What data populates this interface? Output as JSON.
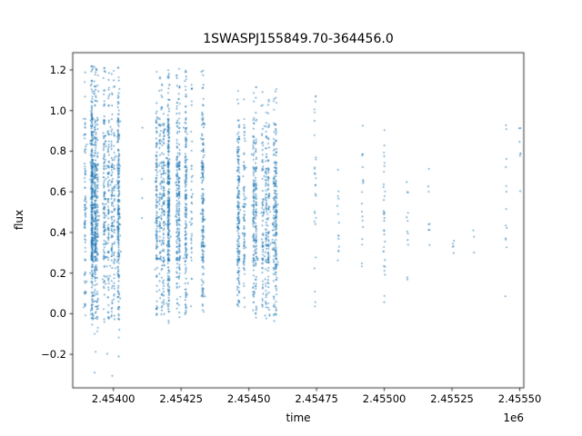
{
  "chart_data": {
    "type": "scatter",
    "title": "1SWASPJ155849.70-364456.0",
    "xlabel": "time",
    "ylabel": "flux",
    "x_offset_label": "1e6",
    "legend": "none",
    "grid": false,
    "marker_color": "#1f77b4",
    "marker_size_px": 1.7,
    "xlim": [
      2453850,
      2455515
    ],
    "ylim": [
      -0.365,
      1.285
    ],
    "x_ticks": [
      {
        "value": 2454000,
        "label": "2.45400"
      },
      {
        "value": 2454250,
        "label": "2.45425"
      },
      {
        "value": 2454500,
        "label": "2.45450"
      },
      {
        "value": 2454750,
        "label": "2.45475"
      },
      {
        "value": 2455000,
        "label": "2.45500"
      },
      {
        "value": 2455250,
        "label": "2.45525"
      },
      {
        "value": 2455500,
        "label": "2.45550"
      }
    ],
    "y_ticks": [
      {
        "value": -0.2,
        "label": "−0.2"
      },
      {
        "value": 0.0,
        "label": "0.0"
      },
      {
        "value": 0.2,
        "label": "0.2"
      },
      {
        "value": 0.4,
        "label": "0.4"
      },
      {
        "value": 0.6,
        "label": "0.6"
      },
      {
        "value": 0.8,
        "label": "0.8"
      },
      {
        "value": 1.0,
        "label": "1.0"
      },
      {
        "value": 1.2,
        "label": "1.2"
      }
    ],
    "seed": 42,
    "dense_clusters": [
      {
        "x_min": 2453895,
        "x_max": 2454040,
        "strips": 18,
        "points": 1400,
        "y_layers": [
          {
            "frac": 0.012,
            "min": -0.33,
            "max": 0.02
          },
          {
            "frac": 0.075,
            "min": 0.95,
            "max": 1.22
          },
          {
            "frac": 0.17,
            "min": 0.72,
            "max": 0.96
          },
          {
            "frac": 0.16,
            "min": -0.03,
            "max": 0.28
          },
          {
            "frac": 0.583,
            "min": 0.26,
            "max": 0.74
          }
        ]
      },
      {
        "x_min": 2454150,
        "x_max": 2454355,
        "strips": 16,
        "points": 1250,
        "y_layers": [
          {
            "frac": 0.004,
            "min": -0.06,
            "max": 0.02
          },
          {
            "frac": 0.09,
            "min": 0.95,
            "max": 1.21
          },
          {
            "frac": 0.18,
            "min": 0.72,
            "max": 0.96
          },
          {
            "frac": 0.15,
            "min": -0.01,
            "max": 0.28
          },
          {
            "frac": 0.576,
            "min": 0.26,
            "max": 0.75
          }
        ]
      },
      {
        "x_min": 2454455,
        "x_max": 2454605,
        "strips": 12,
        "points": 950,
        "y_layers": [
          {
            "frac": 0.004,
            "min": -0.05,
            "max": 0.02
          },
          {
            "frac": 0.05,
            "min": 0.93,
            "max": 1.12
          },
          {
            "frac": 0.17,
            "min": 0.7,
            "max": 0.94
          },
          {
            "frac": 0.16,
            "min": -0.01,
            "max": 0.28
          },
          {
            "frac": 0.616,
            "min": 0.25,
            "max": 0.72
          }
        ]
      }
    ],
    "sparse_columns": [
      {
        "x": 2454105,
        "count": 4,
        "y_min": 0.35,
        "y_max": 0.95
      },
      {
        "x": 2454745,
        "count": 28,
        "y_min": 0.0,
        "y_max": 1.12
      },
      {
        "x": 2454830,
        "count": 14,
        "y_min": 0.02,
        "y_max": 1.0
      },
      {
        "x": 2454920,
        "count": 18,
        "y_min": 0.0,
        "y_max": 1.03
      },
      {
        "x": 2455000,
        "count": 32,
        "y_min": -0.02,
        "y_max": 0.97
      },
      {
        "x": 2455085,
        "count": 12,
        "y_min": 0.12,
        "y_max": 0.82
      },
      {
        "x": 2455165,
        "count": 8,
        "y_min": 0.18,
        "y_max": 0.78
      },
      {
        "x": 2455255,
        "count": 5,
        "y_min": 0.15,
        "y_max": 0.55
      },
      {
        "x": 2455330,
        "count": 3,
        "y_min": 0.25,
        "y_max": 0.45
      },
      {
        "x": 2455450,
        "count": 13,
        "y_min": 0.05,
        "y_max": 1.1
      },
      {
        "x": 2455500,
        "count": 7,
        "y_min": 0.55,
        "y_max": 1.08
      }
    ]
  }
}
